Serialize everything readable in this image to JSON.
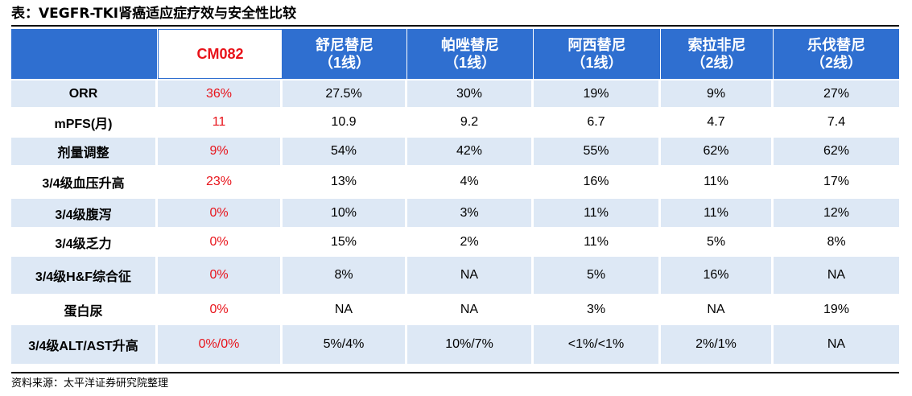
{
  "title": "表：VEGFR-TKI肾癌适应症疗效与安全性比较",
  "columns": [
    {
      "name": "CM082",
      "sub": ""
    },
    {
      "name": "舒尼替尼",
      "sub": "（1线）"
    },
    {
      "name": "帕唑替尼",
      "sub": "（1线）"
    },
    {
      "name": "阿西替尼",
      "sub": "（1线）"
    },
    {
      "name": "索拉非尼",
      "sub": "（2线）"
    },
    {
      "name": "乐伐替尼",
      "sub": "（2线）"
    }
  ],
  "rows": [
    {
      "label": "ORR",
      "values": [
        "36%",
        "27.5%",
        "30%",
        "19%",
        "9%",
        "27%"
      ]
    },
    {
      "label": "mPFS(月)",
      "values": [
        "11",
        "10.9",
        "9.2",
        "6.7",
        "4.7",
        "7.4"
      ]
    },
    {
      "label": "剂量调整",
      "values": [
        "9%",
        "54%",
        "42%",
        "55%",
        "62%",
        "62%"
      ]
    },
    {
      "label": "3/4级血压升高",
      "values": [
        "23%",
        "13%",
        "4%",
        "16%",
        "11%",
        "17%"
      ]
    },
    {
      "label": "3/4级腹泻",
      "values": [
        "0%",
        "10%",
        "3%",
        "11%",
        "11%",
        "12%"
      ]
    },
    {
      "label": "3/4级乏力",
      "values": [
        "0%",
        "15%",
        "2%",
        "11%",
        "5%",
        "8%"
      ]
    },
    {
      "label": "3/4级H&F综合征",
      "values": [
        "0%",
        "8%",
        "NA",
        "5%",
        "16%",
        "NA"
      ]
    },
    {
      "label": "蛋白尿",
      "values": [
        "0%",
        "NA",
        "NA",
        "3%",
        "NA",
        "19%"
      ]
    },
    {
      "label": "3/4级ALT/AST升高",
      "values": [
        "0%/0%",
        "5%/4%",
        "10%/7%",
        "<1%/<1%",
        "2%/1%",
        "NA"
      ]
    }
  ],
  "source": "资料来源：太平洋证券研究院整理",
  "colors": {
    "header_blue": "#2f6fd0",
    "stripe": "#dde8f5",
    "highlight_red": "#e8131a"
  }
}
